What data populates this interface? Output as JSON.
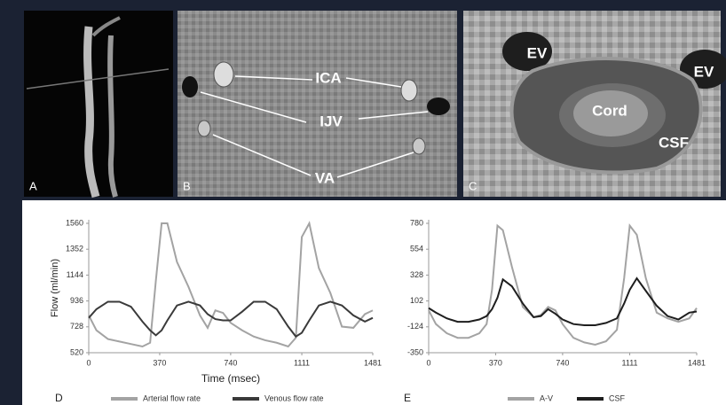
{
  "panels": [
    {
      "label": "A"
    },
    {
      "label": "B",
      "annotations": [
        "ICA",
        "IJV",
        "VA"
      ]
    },
    {
      "label": "C",
      "annotations": [
        "EV",
        "EV",
        "Cord",
        "CSF"
      ]
    }
  ],
  "chart_data": [
    {
      "type": "line",
      "panel_label": "D",
      "y_label": "Flow (ml/min)",
      "x_label": "Time (msec)",
      "x": [
        0,
        40,
        100,
        160,
        220,
        280,
        320,
        350,
        380,
        410,
        460,
        520,
        580,
        620,
        660,
        700,
        740,
        800,
        860,
        920,
        980,
        1040,
        1080,
        1111,
        1150,
        1200,
        1260,
        1320,
        1380,
        1440,
        1481
      ],
      "series": [
        {
          "name": "Arterial flow rate",
          "color": "#a3a3a3",
          "values": [
            820,
            700,
            630,
            610,
            590,
            570,
            600,
            1100,
            1560,
            1560,
            1250,
            1050,
            820,
            720,
            860,
            840,
            760,
            700,
            650,
            620,
            600,
            570,
            640,
            1450,
            1560,
            1200,
            1000,
            730,
            720,
            830,
            860
          ]
        },
        {
          "name": "Venous flow rate",
          "color": "#3a3a3a",
          "values": [
            800,
            870,
            930,
            930,
            890,
            770,
            700,
            660,
            700,
            780,
            900,
            930,
            900,
            830,
            790,
            780,
            780,
            850,
            930,
            930,
            870,
            730,
            650,
            680,
            780,
            900,
            930,
            900,
            820,
            770,
            800
          ]
        }
      ],
      "xlim": [
        0,
        1481
      ],
      "xticks": [
        0,
        370,
        740,
        1111,
        1481
      ],
      "ylim": [
        520,
        1560
      ],
      "yticks": [
        520,
        728,
        936,
        1144,
        1352,
        1560
      ],
      "legend": "bottom"
    },
    {
      "type": "line",
      "panel_label": "E",
      "x": [
        0,
        40,
        100,
        160,
        220,
        280,
        320,
        350,
        380,
        410,
        460,
        520,
        580,
        620,
        660,
        700,
        740,
        800,
        860,
        920,
        980,
        1040,
        1080,
        1111,
        1150,
        1200,
        1260,
        1320,
        1380,
        1440,
        1481
      ],
      "series": [
        {
          "name": "A-V",
          "color": "#a3a3a3",
          "values": [
            20,
            -100,
            -180,
            -220,
            -220,
            -180,
            -100,
            200,
            760,
            720,
            400,
            50,
            -40,
            -20,
            50,
            20,
            -100,
            -220,
            -260,
            -280,
            -250,
            -150,
            300,
            760,
            680,
            300,
            0,
            -50,
            -80,
            -50,
            40
          ]
        },
        {
          "name": "CSF",
          "color": "#1e1e1e",
          "values": [
            40,
            0,
            -50,
            -80,
            -80,
            -60,
            -30,
            30,
            130,
            290,
            230,
            80,
            -40,
            -30,
            30,
            -10,
            -60,
            -100,
            -110,
            -110,
            -90,
            -50,
            80,
            200,
            300,
            190,
            60,
            -30,
            -60,
            0,
            10
          ]
        }
      ],
      "xlim": [
        0,
        1481
      ],
      "xticks": [
        0,
        370,
        740,
        1111,
        1481
      ],
      "ylim": [
        -350,
        780
      ],
      "yticks": [
        -350,
        -124,
        102,
        328,
        554,
        780
      ],
      "legend": "bottom"
    }
  ]
}
